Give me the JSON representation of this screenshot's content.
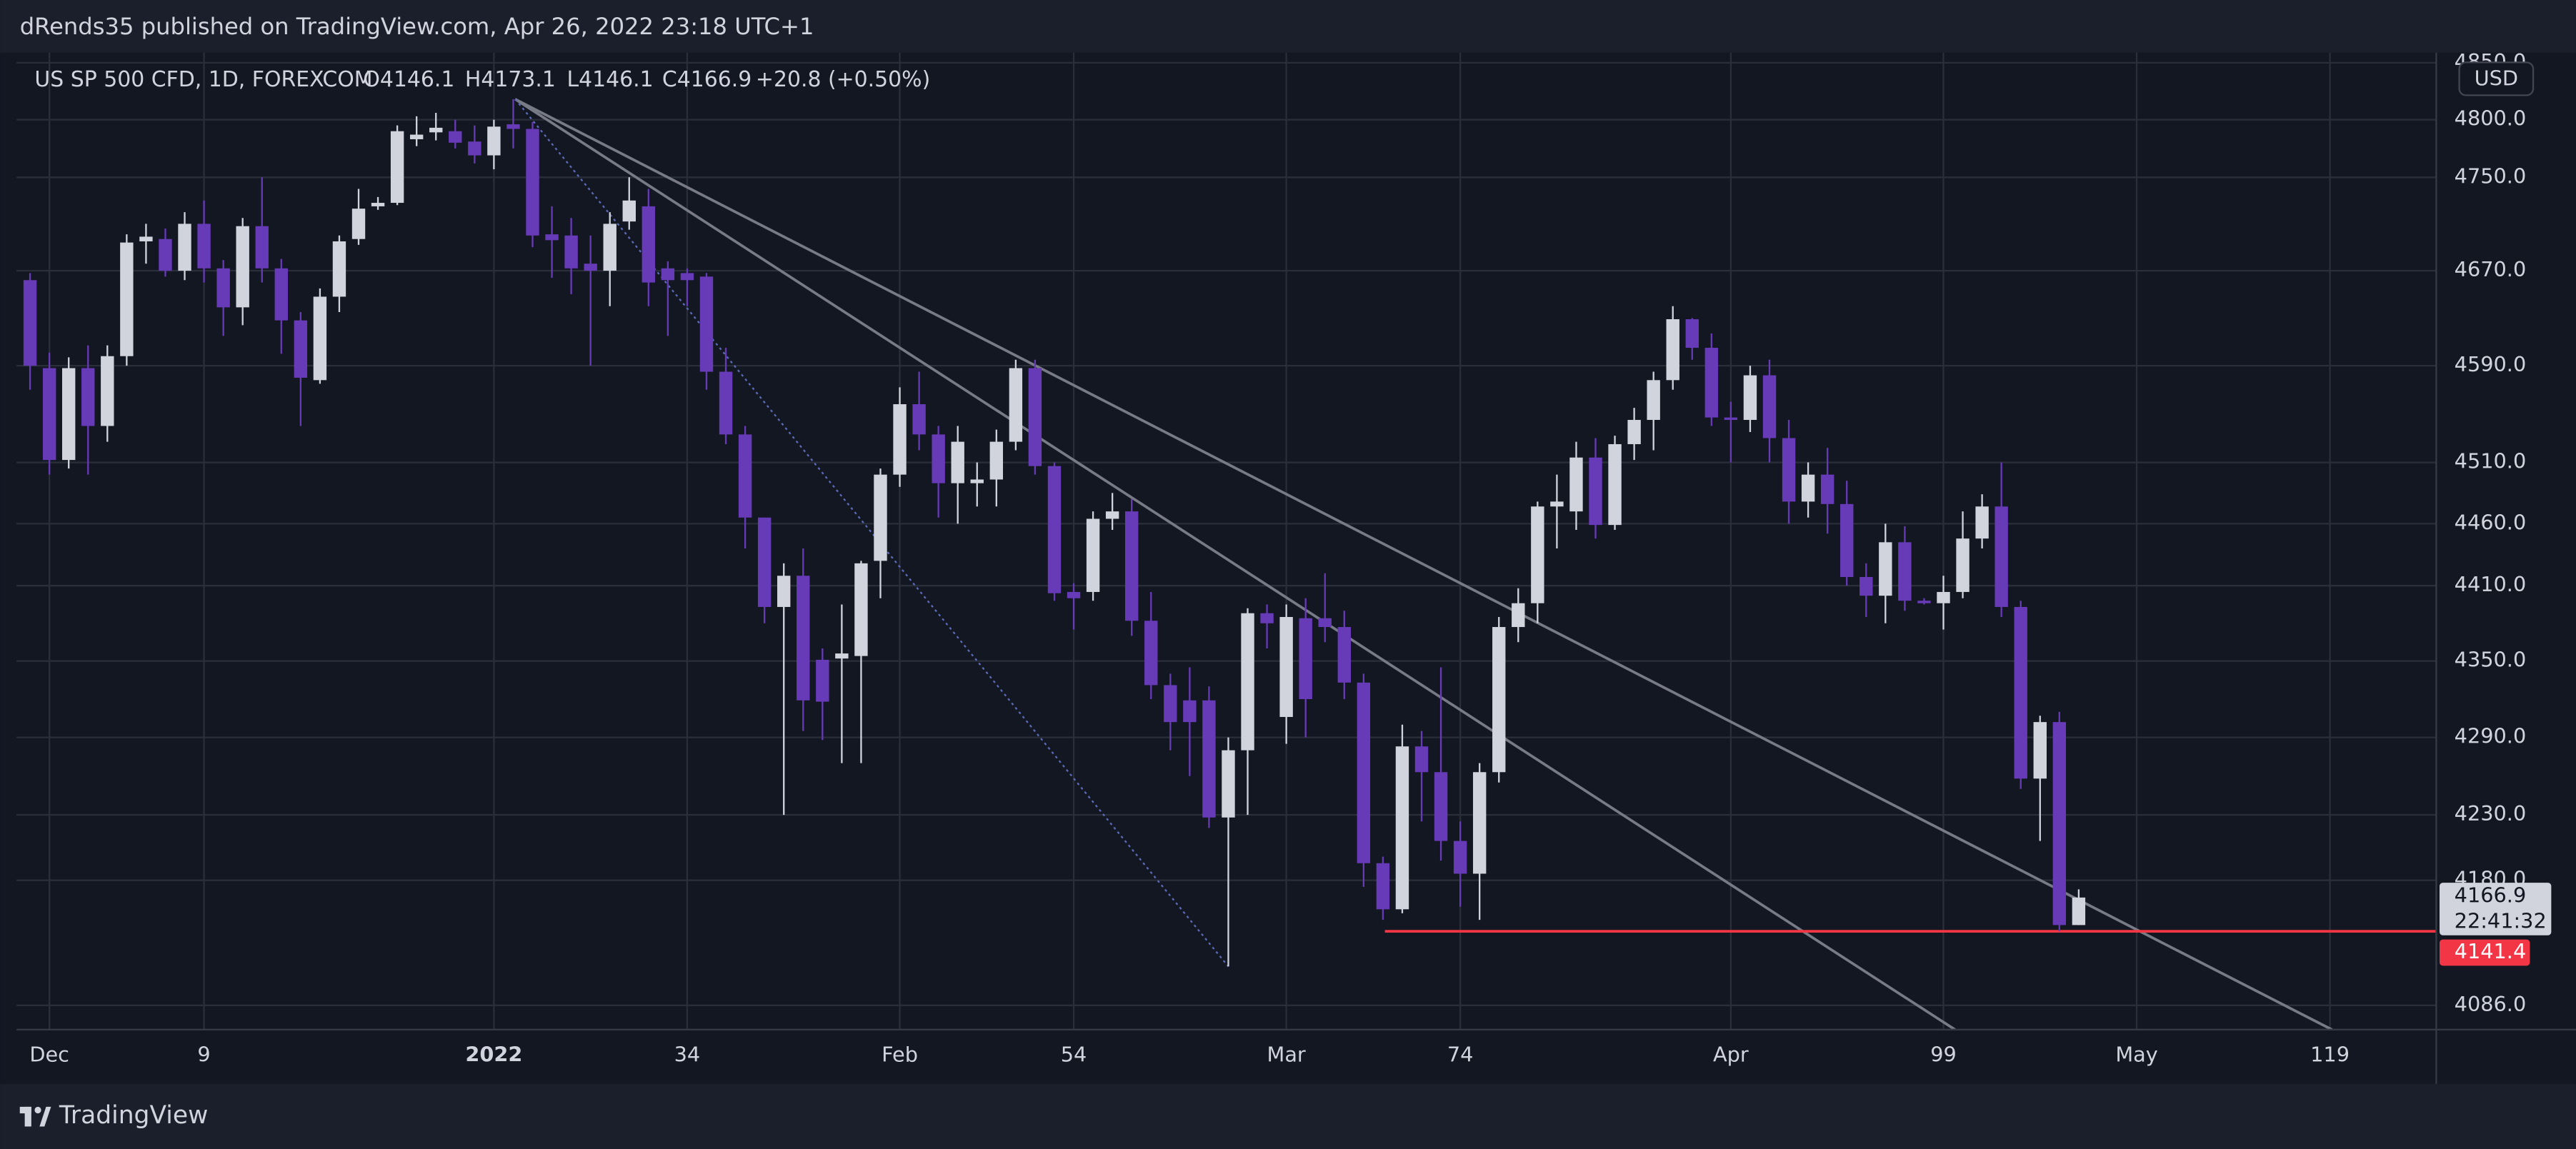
{
  "header": "dRends35 published on TradingView.com, Apr 26, 2022 23:18 UTC+1",
  "footer": "TradingView",
  "chart_data": {
    "type": "candlestick",
    "title": "US SP 500 CFD, 1D, FOREXCOM",
    "ohlc_text": {
      "open": "O4146.1",
      "high": "H4173.1",
      "low": "L4146.1",
      "close": "C4166.9",
      "change": "+20.8 (+0.50%)"
    },
    "currency": "USD",
    "log_scale": true,
    "grid": true,
    "colors": {
      "up": "#d1d4dc",
      "down": "#673ab7"
    },
    "x": [
      0,
      1,
      2,
      3,
      4,
      5,
      6,
      7,
      8,
      9,
      10,
      11,
      12,
      13,
      14,
      15,
      16,
      17,
      18,
      19,
      20,
      21,
      22,
      23,
      24,
      25,
      26,
      27,
      28,
      29,
      30,
      31,
      32,
      33,
      34,
      35,
      36,
      37,
      38,
      39,
      40,
      41,
      42,
      43,
      44,
      45,
      46,
      47,
      48,
      49,
      50,
      51,
      52,
      53,
      54,
      55,
      56,
      57,
      58,
      59,
      60,
      61,
      62,
      63,
      64,
      65,
      66,
      67,
      68,
      69,
      70,
      71,
      72,
      73,
      74,
      75,
      76,
      77,
      78,
      79,
      80,
      81,
      82,
      83,
      84,
      85,
      86,
      87,
      88,
      89,
      90,
      91,
      92,
      93,
      94,
      95,
      96,
      97,
      98,
      99,
      100,
      101,
      102,
      103,
      104,
      105,
      106
    ],
    "open": [
      4662,
      4588,
      4512,
      4588,
      4540,
      4598,
      4695,
      4697,
      4670,
      4710,
      4672,
      4639,
      4708,
      4672,
      4628,
      4578,
      4648,
      4697,
      4725,
      4728,
      4783,
      4789,
      4790,
      4781,
      4769,
      4796,
      4792,
      4701,
      4700,
      4676,
      4670,
      4712,
      4725,
      4672,
      4668,
      4665,
      4585,
      4533,
      4465,
      4393,
      4418,
      4351,
      4352,
      4354,
      4430,
      4500,
      4558,
      4533,
      4493,
      4493,
      4496,
      4527,
      4588,
      4507,
      4405,
      4405,
      4464,
      4470,
      4382,
      4331,
      4319,
      4319,
      4228,
      4280,
      4388,
      4306,
      4384,
      4384,
      4377,
      4333,
      4193,
      4158,
      4283,
      4263,
      4210,
      4185,
      4263,
      4377,
      4396,
      4474,
      4470,
      4514,
      4459,
      4525,
      4545,
      4578,
      4629,
      4605,
      4547,
      4545,
      4582,
      4530,
      4478,
      4500,
      4476,
      4417,
      4402,
      4445,
      4398,
      4396,
      4405,
      4448,
      4474,
      4393,
      4258,
      4302,
      4146.1
    ],
    "high": [
      4668,
      4601,
      4597,
      4607,
      4607,
      4701,
      4710,
      4706,
      4720,
      4730,
      4679,
      4715,
      4750,
      4680,
      4635,
      4655,
      4700,
      4740,
      4733,
      4795,
      4803,
      4806,
      4800,
      4795,
      4800,
      4818,
      4798,
      4725,
      4715,
      4700,
      4720,
      4750,
      4740,
      4678,
      4672,
      4668,
      4605,
      4540,
      4465,
      4428,
      4440,
      4360,
      4395,
      4430,
      4505,
      4572,
      4585,
      4540,
      4540,
      4510,
      4537,
      4595,
      4595,
      4510,
      4412,
      4470,
      4485,
      4480,
      4405,
      4340,
      4345,
      4330,
      4290,
      4392,
      4395,
      4395,
      4400,
      4420,
      4390,
      4340,
      4198,
      4300,
      4295,
      4345,
      4225,
      4270,
      4385,
      4408,
      4478,
      4500,
      4527,
      4530,
      4532,
      4555,
      4585,
      4640,
      4630,
      4617,
      4560,
      4590,
      4595,
      4545,
      4510,
      4522,
      4495,
      4428,
      4460,
      4458,
      4400,
      4418,
      4470,
      4484,
      4510,
      4398,
      4307,
      4310,
      4173.1
    ],
    "low": [
      4570,
      4500,
      4505,
      4500,
      4527,
      4590,
      4676,
      4665,
      4662,
      4660,
      4615,
      4624,
      4660,
      4600,
      4540,
      4575,
      4635,
      4692,
      4722,
      4726,
      4777,
      4782,
      4775,
      4762,
      4757,
      4775,
      4690,
      4664,
      4650,
      4590,
      4640,
      4705,
      4640,
      4615,
      4640,
      4570,
      4525,
      4440,
      4380,
      4230,
      4295,
      4288,
      4270,
      4270,
      4400,
      4490,
      4520,
      4465,
      4460,
      4474,
      4474,
      4520,
      4500,
      4398,
      4375,
      4398,
      4455,
      4370,
      4320,
      4280,
      4260,
      4220,
      4115,
      4230,
      4360,
      4285,
      4290,
      4365,
      4320,
      4175,
      4150,
      4155,
      4225,
      4195,
      4160,
      4150,
      4255,
      4365,
      4380,
      4440,
      4455,
      4448,
      4455,
      4512,
      4520,
      4570,
      4595,
      4540,
      4510,
      4535,
      4510,
      4460,
      4465,
      4452,
      4410,
      4385,
      4380,
      4390,
      4395,
      4375,
      4400,
      4440,
      4385,
      4250,
      4210,
      4141.4,
      4146.1
    ],
    "close": [
      4590,
      4512,
      4588,
      4540,
      4598,
      4694,
      4699,
      4670,
      4710,
      4672,
      4639,
      4708,
      4672,
      4628,
      4580,
      4648,
      4695,
      4723,
      4728,
      4790,
      4787,
      4793,
      4780,
      4769,
      4794,
      4792,
      4700,
      4696,
      4672,
      4670,
      4710,
      4730,
      4660,
      4662,
      4662,
      4585,
      4533,
      4465,
      4393,
      4418,
      4319,
      4318,
      4356,
      4428,
      4500,
      4558,
      4533,
      4493,
      4527,
      4496,
      4527,
      4588,
      4507,
      4404,
      4400,
      4464,
      4470,
      4382,
      4331,
      4302,
      4302,
      4228,
      4280,
      4388,
      4380,
      4385,
      4320,
      4377,
      4333,
      4193,
      4158,
      4283,
      4263,
      4210,
      4185,
      4263,
      4377,
      4396,
      4474,
      4478,
      4514,
      4459,
      4525,
      4545,
      4578,
      4629,
      4605,
      4547,
      4545,
      4582,
      4530,
      4478,
      4500,
      4476,
      4417,
      4402,
      4445,
      4398,
      4396,
      4405,
      4448,
      4474,
      4393,
      4258,
      4302,
      4146.1,
      4166.9
    ],
    "xlim": [
      -0.7,
      124.5
    ],
    "xticks": [
      {
        "value": 1,
        "label": "Dec"
      },
      9,
      {
        "value": 24,
        "label": "2022",
        "major": true
      },
      34,
      {
        "value": 45,
        "label": "Feb"
      },
      54,
      {
        "value": 65,
        "label": "Mar"
      },
      74,
      {
        "value": 88,
        "label": "Apr"
      },
      99,
      {
        "value": 109,
        "label": "May"
      },
      119
    ],
    "ylim": [
      4068,
      4859
    ],
    "yticks": [
      {
        "value": 4850,
        "label": "4850.0"
      },
      {
        "value": 4800,
        "label": "4800.0"
      },
      {
        "value": 4750,
        "label": "4750.0"
      },
      {
        "value": 4670,
        "label": "4670.0"
      },
      {
        "value": 4590,
        "label": "4590.0"
      },
      {
        "value": 4510,
        "label": "4510.0"
      },
      {
        "value": 4460,
        "label": "4460.0"
      },
      {
        "value": 4410,
        "label": "4410.0"
      },
      {
        "value": 4350,
        "label": "4350.0"
      },
      {
        "value": 4290,
        "label": "4290.0"
      },
      {
        "value": 4230,
        "label": "4230.0"
      },
      {
        "value": 4180,
        "label": "4180.0"
      },
      {
        "value": 4086,
        "label": "4086.0"
      }
    ],
    "drawings": [
      {
        "style": "solid",
        "color": "#787b86",
        "x": [
          25.1,
          119.1
        ],
        "y": [
          4818,
          4068
        ]
      },
      {
        "style": "solid",
        "color": "#787b86",
        "x": [
          25.1,
          99.6
        ],
        "y": [
          4818,
          4068
        ]
      },
      {
        "style": "dotted",
        "color": "#5b6ab8",
        "x": [
          25.1,
          62.0
        ],
        "y": [
          4818,
          4115
        ]
      },
      {
        "style": "solid",
        "color": "#f23645",
        "x": [
          70.1,
          124.5
        ],
        "y": [
          4141.4,
          4141.4
        ]
      }
    ],
    "price_labels": [
      {
        "value": 4166.9,
        "label": "4166.9",
        "countdown": "22:41:32",
        "color": "#d1d4dc",
        "text_color": "#131722"
      },
      {
        "value": 4141.4,
        "label": "4141.4",
        "color": "#f23645",
        "text_color": "#ffffff"
      }
    ]
  }
}
